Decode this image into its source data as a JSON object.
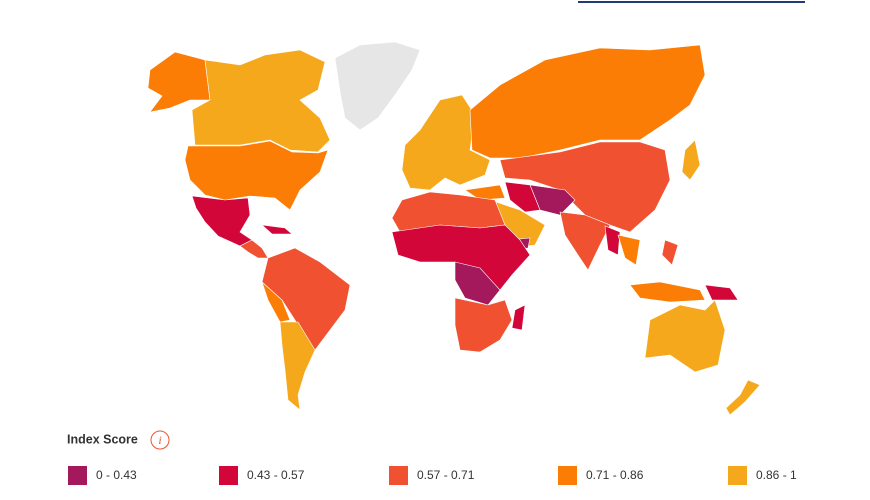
{
  "legend": {
    "title": "Index Score",
    "info_icon": "i",
    "items": [
      {
        "label": "0 - 0.43",
        "color": "#a3195b"
      },
      {
        "label": "0.43 - 0.57",
        "color": "#d3063a"
      },
      {
        "label": "0.57 - 0.71",
        "color": "#ef5131"
      },
      {
        "label": "0.71 - 0.86",
        "color": "#fb7d06"
      },
      {
        "label": "0.86 - 1",
        "color": "#f6a81c"
      }
    ]
  }
}
